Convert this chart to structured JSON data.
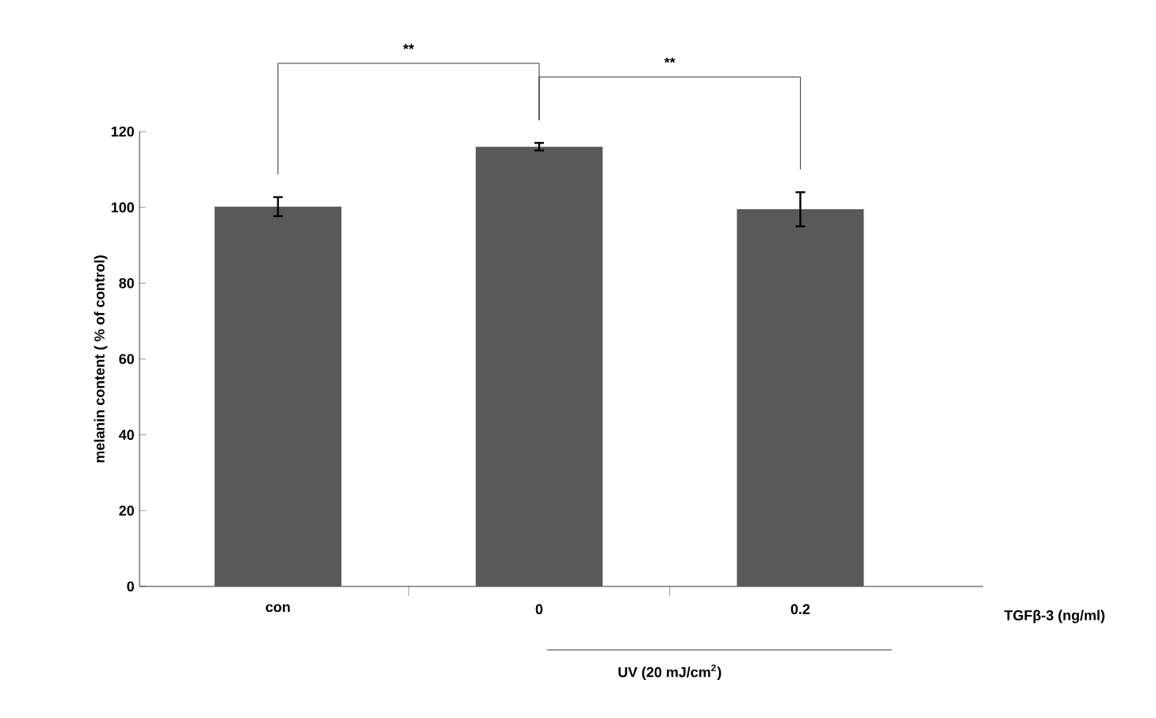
{
  "chart_data": {
    "type": "bar",
    "ylabel": "melanin content ( % of control)",
    "xlabel": "TGFβ-3 (ng/ml)",
    "categories": [
      "con",
      "0",
      "0.2"
    ],
    "values": [
      100.2,
      116,
      99.5
    ],
    "errors": [
      2.5,
      1,
      4.5
    ],
    "color": "#595959",
    "ylim": [
      0,
      120
    ],
    "yticks": [
      0,
      20,
      40,
      60,
      80,
      100,
      120
    ],
    "annotations": [
      "**",
      "**",
      "UV (20 mJ/cm$^{2}$)"
    ],
    "grid": false
  }
}
